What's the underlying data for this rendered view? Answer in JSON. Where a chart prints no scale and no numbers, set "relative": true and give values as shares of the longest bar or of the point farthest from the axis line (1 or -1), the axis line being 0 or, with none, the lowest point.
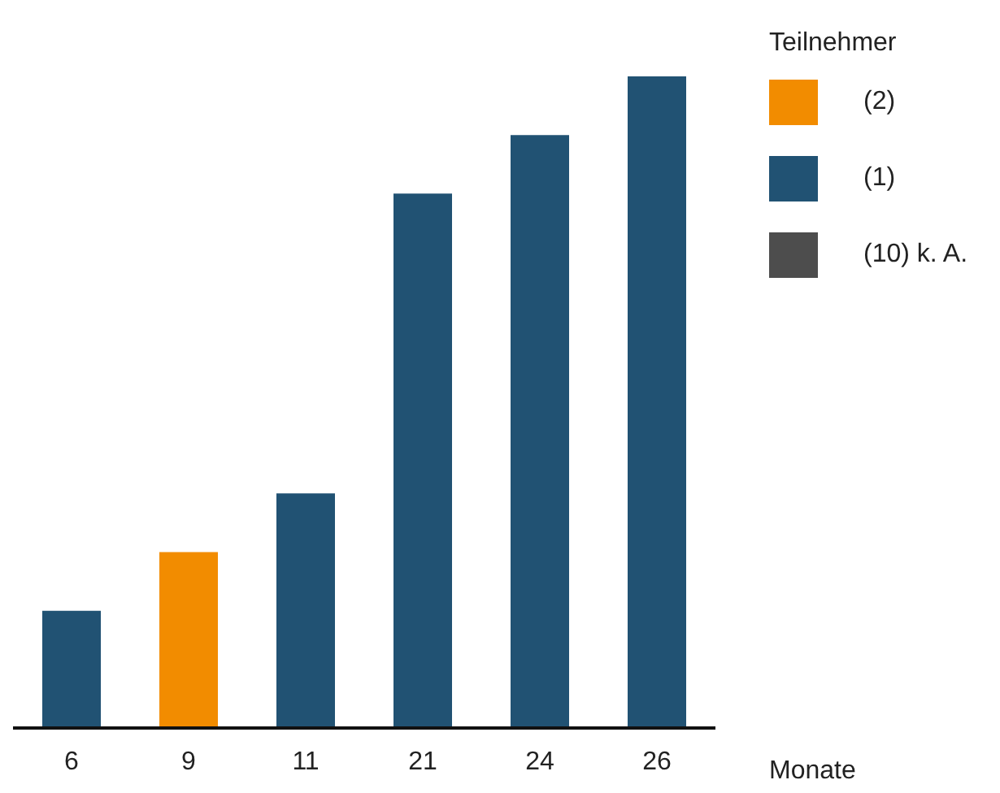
{
  "chart_data": {
    "type": "bar",
    "xlabel": "Monate",
    "legend_title": "Teilnehmer",
    "categories": [
      "6",
      "9",
      "11",
      "21",
      "24",
      "26"
    ],
    "relative": true,
    "stacked": true,
    "legend": "top right",
    "grid": false,
    "series": [
      {
        "name": "(2)",
        "color": "#f28c00",
        "values": [
          null,
          0.27,
          null,
          null,
          null,
          null
        ]
      },
      {
        "name": "(1)",
        "color": "#215273",
        "values": [
          0.18,
          null,
          0.36,
          0.82,
          0.91,
          1
        ]
      },
      {
        "name": "(10) k. A.",
        "color": "#4d4d4d",
        "values": [
          null,
          null,
          null,
          null,
          null,
          null
        ]
      }
    ]
  }
}
